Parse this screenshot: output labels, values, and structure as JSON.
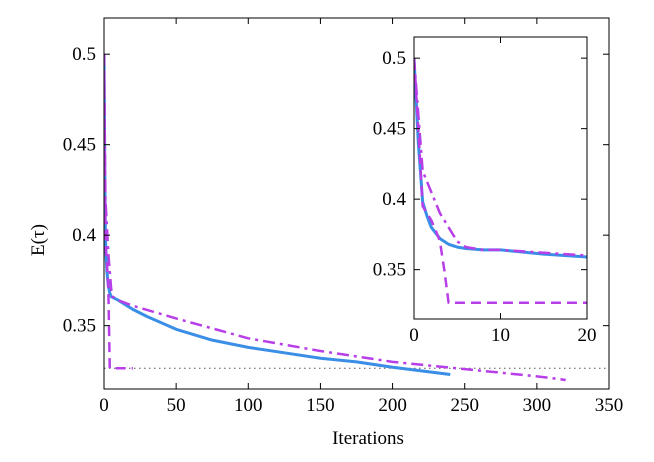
{
  "chart_data": [
    {
      "type": "line",
      "xlabel": "Iterations",
      "ylabel": "E(τ)",
      "xlim": [
        0,
        350
      ],
      "ylim": [
        0.315,
        0.52
      ],
      "xticks": [
        "0",
        "50",
        "100",
        "150",
        "200",
        "250",
        "300",
        "350"
      ],
      "yticks": [
        "0.35",
        "0.4",
        "0.45",
        "0.5"
      ],
      "xtick_values": [
        0,
        50,
        100,
        150,
        200,
        250,
        300,
        350
      ],
      "ytick_values": [
        0.35,
        0.4,
        0.45,
        0.5
      ],
      "reference_line": {
        "y": 0.3265,
        "style": "dotted",
        "color": "#555555"
      },
      "series": [
        {
          "color": "#3a8ee6",
          "style": "solid",
          "x": [
            0,
            0.5,
            1,
            1.5,
            2,
            3,
            4,
            5,
            10,
            20,
            30,
            50,
            75,
            100,
            125,
            150,
            175,
            200,
            220,
            240
          ],
          "y": [
            0.5,
            0.44,
            0.398,
            0.388,
            0.38,
            0.372,
            0.368,
            0.366,
            0.364,
            0.359,
            0.355,
            0.348,
            0.342,
            0.338,
            0.335,
            0.332,
            0.33,
            0.327,
            0.325,
            0.323
          ]
        },
        {
          "color": "#b83ee8",
          "style": "dashed",
          "x": [
            0,
            1,
            2,
            3,
            4,
            5,
            10,
            20
          ],
          "y": [
            0.5,
            0.395,
            0.385,
            0.37,
            0.3265,
            0.3265,
            0.3265,
            0.3265
          ]
        },
        {
          "color": "#b83ee8",
          "style": "dashdot",
          "x": [
            0,
            1,
            2,
            3,
            5,
            6,
            10,
            20,
            50,
            100,
            150,
            200,
            250,
            300,
            320
          ],
          "y": [
            0.5,
            0.42,
            0.405,
            0.39,
            0.37,
            0.366,
            0.364,
            0.361,
            0.354,
            0.343,
            0.336,
            0.33,
            0.326,
            0.322,
            0.32
          ]
        }
      ]
    },
    {
      "type": "line",
      "xlim": [
        0,
        20
      ],
      "ylim": [
        0.315,
        0.515
      ],
      "xticks": [
        "0",
        "10",
        "20"
      ],
      "yticks": [
        "0.35",
        "0.4",
        "0.45",
        "0.5"
      ],
      "xtick_values": [
        0,
        10,
        20
      ],
      "ytick_values": [
        0.35,
        0.4,
        0.45,
        0.5
      ],
      "series": [
        {
          "color": "#3a8ee6",
          "style": "solid",
          "x": [
            0,
            0.5,
            1,
            1.5,
            2,
            3,
            4,
            5,
            6,
            8,
            10,
            15,
            20
          ],
          "y": [
            0.5,
            0.44,
            0.398,
            0.388,
            0.38,
            0.372,
            0.368,
            0.366,
            0.365,
            0.364,
            0.364,
            0.361,
            0.359
          ]
        },
        {
          "color": "#b83ee8",
          "style": "dashed",
          "x": [
            0,
            0.5,
            1,
            1.5,
            2,
            2.5,
            3,
            3.5,
            4,
            4.5,
            5,
            10,
            15,
            20
          ],
          "y": [
            0.5,
            0.45,
            0.395,
            0.39,
            0.385,
            0.378,
            0.37,
            0.35,
            0.3265,
            0.3265,
            0.3265,
            0.3265,
            0.3265,
            0.3265
          ]
        },
        {
          "color": "#b83ee8",
          "style": "dashdot",
          "x": [
            0,
            0.5,
            1,
            2,
            3,
            4,
            5,
            6,
            7,
            8,
            10,
            15,
            20
          ],
          "y": [
            0.5,
            0.46,
            0.42,
            0.405,
            0.39,
            0.38,
            0.37,
            0.366,
            0.365,
            0.364,
            0.364,
            0.362,
            0.36
          ]
        }
      ]
    }
  ]
}
